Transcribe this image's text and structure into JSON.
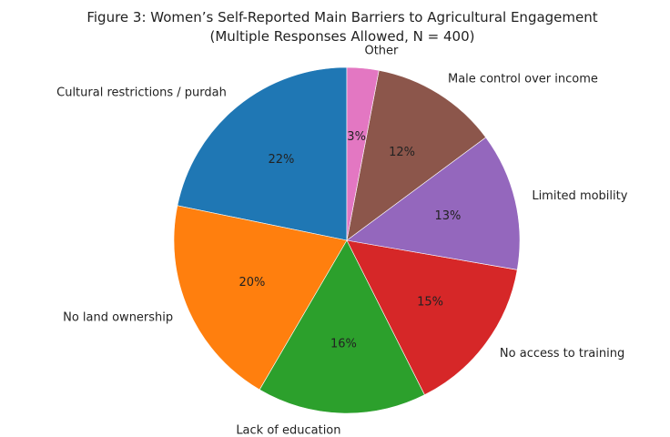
{
  "chart_data": {
    "type": "pie",
    "title_lines": [
      "Figure 3: Women’s Self-Reported Main Barriers to Agricultural Engagement",
      "(Multiple Responses Allowed, N = 400)"
    ],
    "start_angle_deg": 90,
    "direction": "counterclockwise",
    "slices": [
      {
        "label": "Cultural restrictions / purdah",
        "value": 22,
        "pct_label": "22%",
        "color": "#1f77b4"
      },
      {
        "label": "No land ownership",
        "value": 20,
        "pct_label": "20%",
        "color": "#ff7f0e"
      },
      {
        "label": "Lack of education",
        "value": 16,
        "pct_label": "16%",
        "color": "#2ca02c"
      },
      {
        "label": "No access to training",
        "value": 15,
        "pct_label": "15%",
        "color": "#d62728"
      },
      {
        "label": "Limited mobility",
        "value": 13,
        "pct_label": "13%",
        "color": "#9467bd"
      },
      {
        "label": "Male control over income",
        "value": 12,
        "pct_label": "12%",
        "color": "#8c564b"
      },
      {
        "label": "Other",
        "value": 3,
        "pct_label": "3%",
        "color": "#e377c2"
      }
    ]
  }
}
